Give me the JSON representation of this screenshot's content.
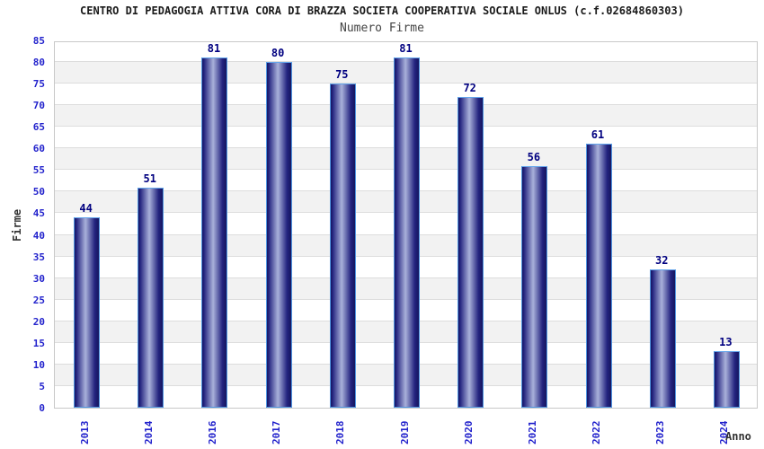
{
  "chart_data": {
    "type": "bar",
    "title": "CENTRO DI PEDAGOGIA ATTIVA CORA DI BRAZZA SOCIETA COOPERATIVA SOCIALE ONLUS (c.f.02684860303)",
    "subtitle": "Numero Firme",
    "xlabel": "Anno",
    "ylabel": "Firme",
    "categories": [
      "2013",
      "2014",
      "2016",
      "2017",
      "2018",
      "2019",
      "2020",
      "2021",
      "2022",
      "2023",
      "2024"
    ],
    "values": [
      44,
      51,
      81,
      80,
      75,
      81,
      72,
      56,
      61,
      32,
      13
    ],
    "ylim": [
      0,
      85
    ],
    "ytick_step": 5,
    "grid": true,
    "legend": false,
    "colors": {
      "title": "#1a1a1a",
      "subtitle": "#444444",
      "axis_title": "#333333",
      "tick_label": "#2222cc",
      "value_label": "#000080",
      "bar_dark": "#16165f",
      "bar_mid": "#23237f",
      "bar_highlight": "#a9b1da",
      "bar_border": "#4f94e0",
      "bar_border_top": "#63a5ec",
      "band_gray": "#f2f2f2",
      "grid_line": "#dddddd",
      "plot_border": "#c8c8c8"
    }
  }
}
